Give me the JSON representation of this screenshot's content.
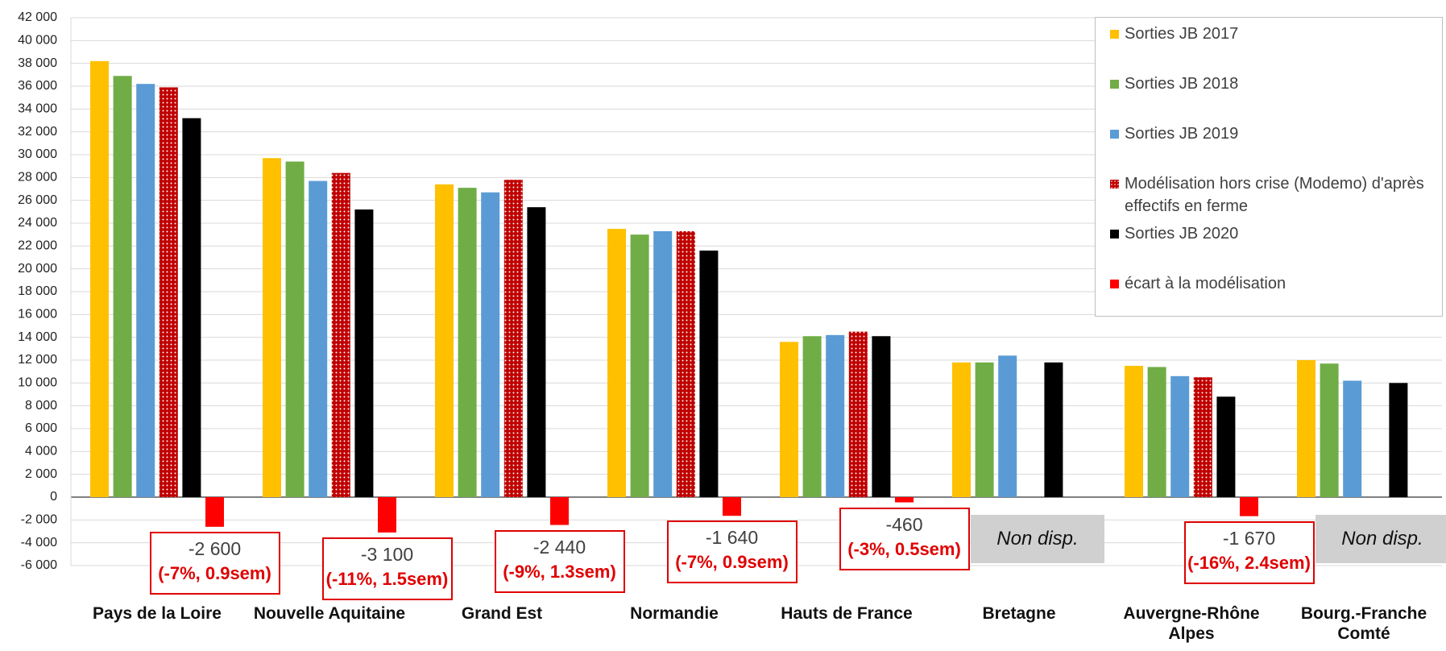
{
  "chart_data": {
    "type": "bar",
    "categories": [
      "Pays de la Loire",
      "Nouvelle Aquitaine",
      "Grand Est",
      "Normandie",
      "Hauts de France",
      "Bretagne",
      "Auvergne-Rhône Alpes",
      "Bourg.-Franche Comté"
    ],
    "series": [
      {
        "name": "Sorties JB 2017",
        "color": "#FFC000",
        "values": [
          38200,
          29700,
          27400,
          23500,
          13600,
          11800,
          11500,
          12000
        ]
      },
      {
        "name": "Sorties JB 2018",
        "color": "#70AD47",
        "values": [
          36900,
          29400,
          27100,
          23000,
          14100,
          11800,
          11400,
          11700
        ]
      },
      {
        "name": "Sorties JB 2019",
        "color": "#5B9BD5",
        "values": [
          36200,
          27700,
          26700,
          23300,
          14200,
          12400,
          10600,
          10200
        ]
      },
      {
        "name": "Modélisation hors crise (Modemo) d'après effectifs en ferme",
        "color": "#C00000",
        "pattern": "dots",
        "values": [
          35900,
          28400,
          27800,
          23300,
          14500,
          null,
          10500,
          null
        ]
      },
      {
        "name": "Sorties JB 2020",
        "color": "#000000",
        "values": [
          33200,
          25200,
          25400,
          21600,
          14100,
          11800,
          8800,
          10000
        ]
      },
      {
        "name": "écart à la modélisation",
        "color": "#FF0000",
        "values": [
          -2600,
          -3100,
          -2440,
          -1640,
          -460,
          null,
          -1670,
          null
        ],
        "value_labels": [
          "-2 600",
          "-3 100",
          "-2 440",
          "-1 640",
          "-460",
          null,
          "-1 670",
          null
        ],
        "details": [
          "(-7%, 0.9sem)",
          "(-11%, 1.5sem)",
          "(-9%, 1.3sem)",
          "(-7%, 0.9sem)",
          "(-3%, 0.5sem)",
          null,
          "(-16%, 2.4sem)",
          null
        ],
        "notes": [
          null,
          null,
          null,
          null,
          null,
          "Non disp.",
          null,
          "Non disp."
        ]
      }
    ],
    "ylim": [
      -6000,
      42000
    ],
    "yticks": [
      {
        "value": -6000,
        "label": "-6 000"
      },
      {
        "value": -4000,
        "label": "-4 000"
      },
      {
        "value": -2000,
        "label": "-2 000"
      },
      0,
      {
        "value": 2000,
        "label": "2 000"
      },
      {
        "value": 4000,
        "label": "4 000"
      },
      {
        "value": 6000,
        "label": "6 000"
      },
      {
        "value": 8000,
        "label": "8 000"
      },
      {
        "value": 10000,
        "label": "10 000"
      },
      {
        "value": 12000,
        "label": "12 000"
      },
      {
        "value": 14000,
        "label": "14 000"
      },
      {
        "value": 16000,
        "label": "16 000"
      },
      {
        "value": 18000,
        "label": "18 000"
      },
      {
        "value": 20000,
        "label": "20 000"
      },
      {
        "value": 22000,
        "label": "22 000"
      },
      {
        "value": 24000,
        "label": "24 000"
      },
      {
        "value": 26000,
        "label": "26 000"
      },
      {
        "value": 28000,
        "label": "28 000"
      },
      {
        "value": 30000,
        "label": "30 000"
      },
      {
        "value": 32000,
        "label": "32 000"
      },
      {
        "value": 34000,
        "label": "34 000"
      },
      {
        "value": 36000,
        "label": "36 000"
      },
      {
        "value": 38000,
        "label": "38 000"
      },
      {
        "value": 40000,
        "label": "40 000"
      },
      {
        "value": 42000,
        "label": "42 000"
      }
    ],
    "grid": true,
    "legend": "upper right"
  }
}
